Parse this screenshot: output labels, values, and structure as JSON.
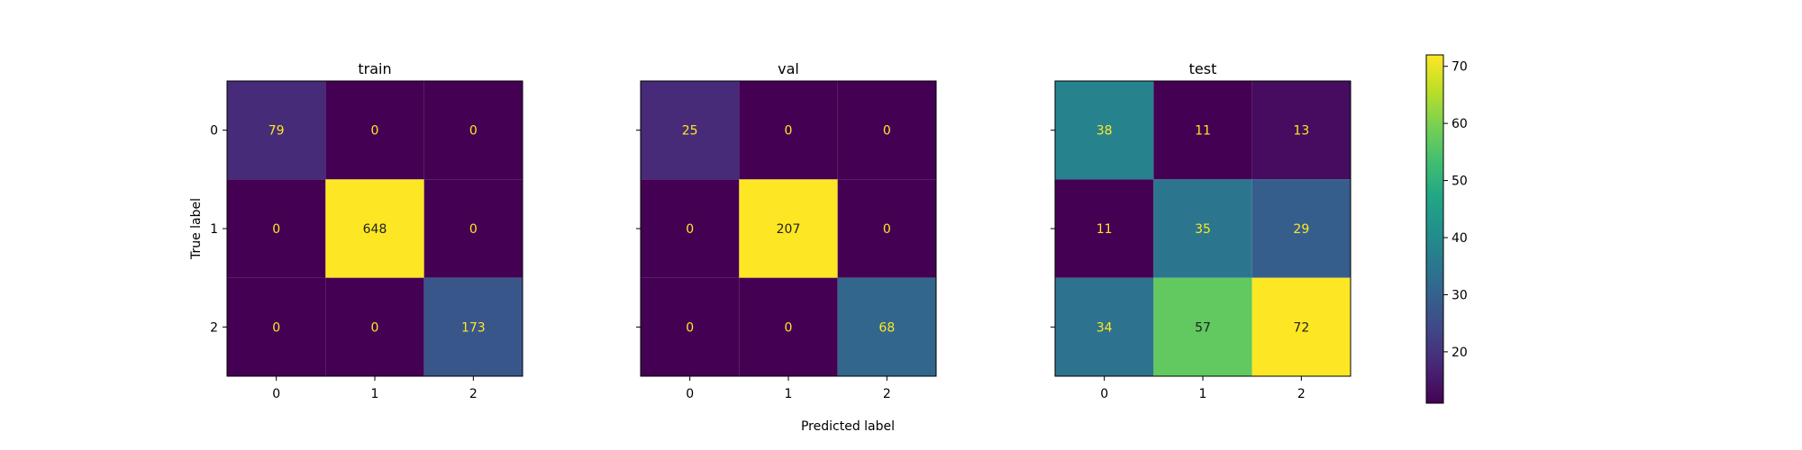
{
  "chart_data": [
    {
      "type": "heatmap",
      "title": "train",
      "x": [
        "0",
        "1",
        "2"
      ],
      "y": [
        "0",
        "1",
        "2"
      ],
      "values": [
        [
          79,
          0,
          0
        ],
        [
          0,
          648,
          0
        ],
        [
          0,
          0,
          173
        ]
      ],
      "xlabel": "",
      "ylabel": "True label"
    },
    {
      "type": "heatmap",
      "title": "val",
      "x": [
        "0",
        "1",
        "2"
      ],
      "y": [
        "0",
        "1",
        "2"
      ],
      "values": [
        [
          25,
          0,
          0
        ],
        [
          0,
          207,
          0
        ],
        [
          0,
          0,
          68
        ]
      ],
      "xlabel": "Predicted label",
      "ylabel": ""
    },
    {
      "type": "heatmap",
      "title": "test",
      "x": [
        "0",
        "1",
        "2"
      ],
      "y": [
        "0",
        "1",
        "2"
      ],
      "values": [
        [
          38,
          11,
          13
        ],
        [
          11,
          35,
          29
        ],
        [
          34,
          57,
          72
        ]
      ],
      "xlabel": "",
      "ylabel": ""
    }
  ],
  "colorbar": {
    "ticks": [
      20,
      30,
      40,
      50,
      60,
      70
    ],
    "range": [
      11,
      72
    ],
    "colormap": "viridis"
  },
  "colors": {
    "cell_text_light": "#fde725",
    "cell_text_dark": "#222222",
    "frame": "#000000"
  }
}
